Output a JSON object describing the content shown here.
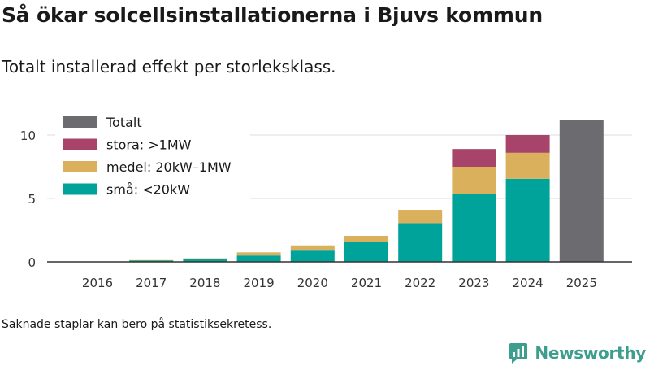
{
  "title": "Så ökar solcellsinstallationerna i Bjuvs kommun",
  "subtitle": "Totalt installerad effekt per storleksklass.",
  "note": "Saknade staplar kan bero på statistiksekretess.",
  "brand": {
    "name": "Newsworthy",
    "icon": "newsworthy-logo-icon",
    "color": "#3e9e8e"
  },
  "chart_data": {
    "type": "bar",
    "stacked": true,
    "title": "Så ökar solcellsinstallationerna i Bjuvs kommun",
    "subtitle": "Totalt installerad effekt per storleksklass.",
    "xlabel": "",
    "ylabel": "",
    "ylim": [
      0,
      12.5
    ],
    "yticks": [
      0,
      5,
      10
    ],
    "grid": true,
    "legend_position": "top-left",
    "categories": [
      "2016",
      "2017",
      "2018",
      "2019",
      "2020",
      "2021",
      "2022",
      "2023",
      "2024",
      "2025"
    ],
    "series": [
      {
        "name": "små: <20kW",
        "color": "#00a39a",
        "values": [
          0.03,
          0.12,
          0.2,
          0.5,
          0.95,
          1.6,
          3.05,
          5.35,
          6.55,
          null
        ]
      },
      {
        "name": "medel: 20kW–1MW",
        "color": "#dbb05c",
        "values": [
          0.0,
          0.02,
          0.08,
          0.25,
          0.35,
          0.45,
          1.05,
          2.15,
          2.05,
          null
        ]
      },
      {
        "name": "stora: >1MW",
        "color": "#a8446a",
        "values": [
          0.0,
          0.0,
          0.0,
          0.0,
          0.0,
          0.0,
          0.0,
          1.4,
          1.4,
          null
        ]
      },
      {
        "name": "Totalt",
        "color": "#6c6b70",
        "values": [
          null,
          null,
          null,
          null,
          null,
          null,
          null,
          null,
          null,
          11.2
        ]
      }
    ],
    "legend_order": [
      "Totalt",
      "stora: >1MW",
      "medel: 20kW–1MW",
      "små: <20kW"
    ]
  }
}
